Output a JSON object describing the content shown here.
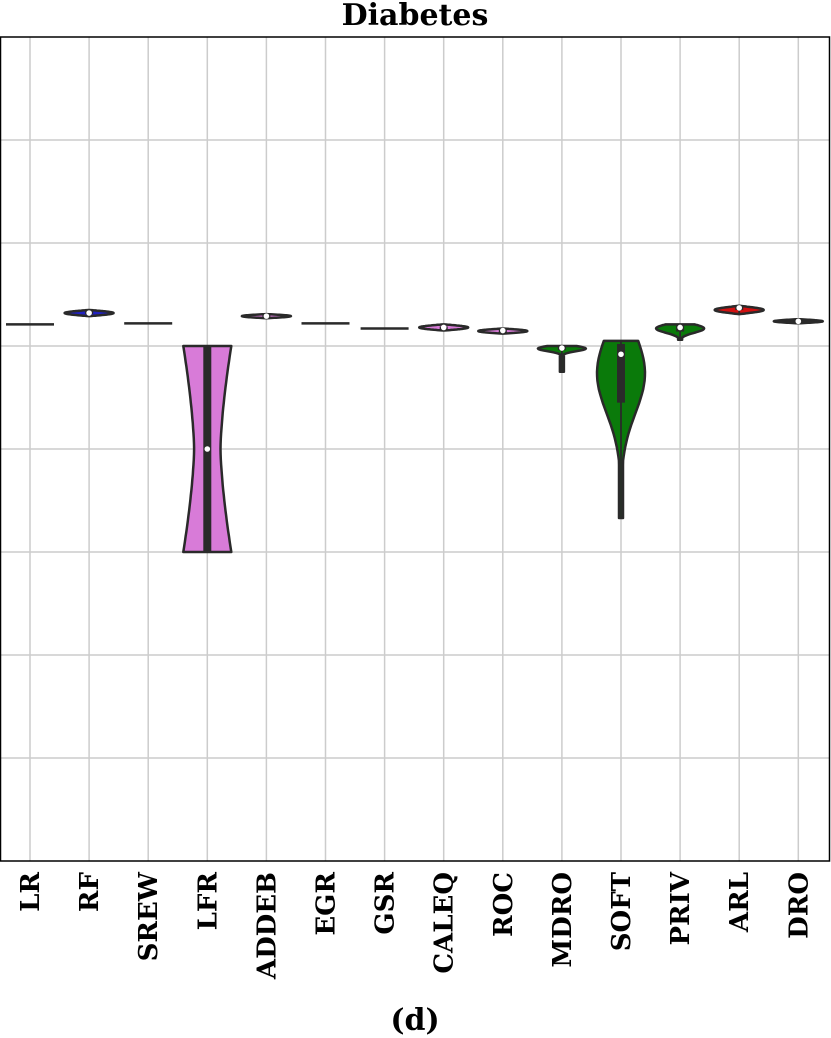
{
  "chart_data": {
    "type": "violin",
    "title": "Diabetes",
    "subtitle": "(d)",
    "xlabel": "",
    "ylabel": "",
    "categories": [
      "LR",
      "RF",
      "SREW",
      "LFR",
      "ADDEB",
      "EGR",
      "GSR",
      "CALEQ",
      "ROC",
      "MDRO",
      "SOFT",
      "PRIV",
      "ARL",
      "DRO"
    ],
    "ylim": [
      0,
      8
    ],
    "grid": true,
    "series": [
      {
        "category": "LR",
        "color": "#2a2a2a",
        "median": 5.21,
        "q1": 5.21,
        "q3": 5.21,
        "min": 5.21,
        "max": 5.21
      },
      {
        "category": "RF",
        "color": "#2020c0",
        "median": 5.32,
        "q1": 5.31,
        "q3": 5.34,
        "min": 5.29,
        "max": 5.35
      },
      {
        "category": "SREW",
        "color": "#2a2a2a",
        "median": 5.22,
        "q1": 5.22,
        "q3": 5.22,
        "min": 5.22,
        "max": 5.22
      },
      {
        "category": "LFR",
        "color": "#d87bd8",
        "median": 4.0,
        "q1": 3.0,
        "q3": 5.0,
        "min": 3.0,
        "max": 5.0
      },
      {
        "category": "ADDEB",
        "color": "#d87bd8",
        "median": 5.29,
        "q1": 5.28,
        "q3": 5.3,
        "min": 5.27,
        "max": 5.31
      },
      {
        "category": "EGR",
        "color": "#2a2a2a",
        "median": 5.22,
        "q1": 5.22,
        "q3": 5.22,
        "min": 5.22,
        "max": 5.22
      },
      {
        "category": "GSR",
        "color": "#2a2a2a",
        "median": 5.17,
        "q1": 5.17,
        "q3": 5.17,
        "min": 5.17,
        "max": 5.17
      },
      {
        "category": "CALEQ",
        "color": "#d87bd8",
        "median": 5.18,
        "q1": 5.17,
        "q3": 5.19,
        "min": 5.15,
        "max": 5.21
      },
      {
        "category": "ROC",
        "color": "#d87bd8",
        "median": 5.15,
        "q1": 5.14,
        "q3": 5.16,
        "min": 5.12,
        "max": 5.17
      },
      {
        "category": "MDRO",
        "color": "#0a7a0a",
        "median": 4.98,
        "q1": 4.96,
        "q3": 4.99,
        "min": 4.75,
        "max": 5.0
      },
      {
        "category": "SOFT",
        "color": "#0a7a0a",
        "median": 4.92,
        "q1": 4.45,
        "q3": 5.02,
        "min": 3.33,
        "max": 5.05
      },
      {
        "category": "PRIV",
        "color": "#0a7a0a",
        "median": 5.18,
        "q1": 5.14,
        "q3": 5.2,
        "min": 5.06,
        "max": 5.21
      },
      {
        "category": "ARL",
        "color": "#d01010",
        "median": 5.37,
        "q1": 5.35,
        "q3": 5.38,
        "min": 5.31,
        "max": 5.39
      },
      {
        "category": "DRO",
        "color": "#2a2a2a",
        "median": 5.24,
        "q1": 5.23,
        "q3": 5.25,
        "min": 5.22,
        "max": 5.26
      }
    ]
  }
}
